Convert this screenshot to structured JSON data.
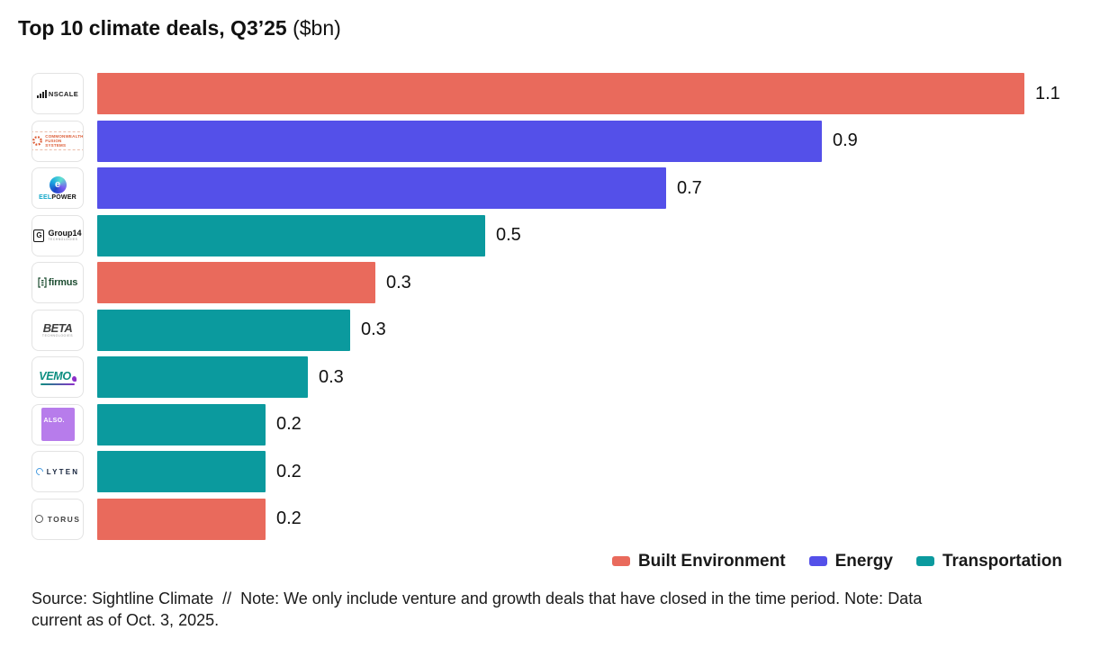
{
  "title": {
    "main": "Top 10 climate deals, Q3’25",
    "suffix": " ($bn)"
  },
  "sector_colors": {
    "Built Environment": "#e96a5c",
    "Energy": "#5450e9",
    "Transportation": "#0b9a9e"
  },
  "chart_data": {
    "type": "bar",
    "orientation": "horizontal",
    "title": "Top 10 climate deals, Q3’25 ($bn)",
    "unit": "$bn",
    "xlim": [
      0,
      1.2
    ],
    "grid": false,
    "legend_position": "bottom-right",
    "categories": [
      "Nscale",
      "Commonwealth Fusion Systems",
      "Eel Power",
      "Group14",
      "Firmus",
      "BETA Technologies",
      "VEMO",
      "ALSO.",
      "Lyten",
      "Torus"
    ],
    "bars": [
      {
        "company": "Nscale",
        "sector": "Built Environment",
        "value": 1.1,
        "label": "1.1"
      },
      {
        "company": "Commonwealth Fusion Systems",
        "sector": "Energy",
        "value": 0.86,
        "label": "0.9"
      },
      {
        "company": "Eel Power",
        "sector": "Energy",
        "value": 0.675,
        "label": "0.7"
      },
      {
        "company": "Group14",
        "sector": "Transportation",
        "value": 0.46,
        "label": "0.5"
      },
      {
        "company": "Firmus",
        "sector": "Built Environment",
        "value": 0.33,
        "label": "0.3"
      },
      {
        "company": "BETA Technologies",
        "sector": "Transportation",
        "value": 0.3,
        "label": "0.3"
      },
      {
        "company": "VEMO",
        "sector": "Transportation",
        "value": 0.25,
        "label": "0.3"
      },
      {
        "company": "ALSO.",
        "sector": "Transportation",
        "value": 0.2,
        "label": "0.2"
      },
      {
        "company": "Lyten",
        "sector": "Transportation",
        "value": 0.2,
        "label": "0.2"
      },
      {
        "company": "Torus",
        "sector": "Built Environment",
        "value": 0.2,
        "label": "0.2"
      }
    ],
    "legend": [
      {
        "label": "Built Environment",
        "color": "#e96a5c"
      },
      {
        "label": "Energy",
        "color": "#5450e9"
      },
      {
        "label": "Transportation",
        "color": "#0b9a9e"
      }
    ]
  },
  "logos": {
    "nscale": {
      "text": "NSCALE"
    },
    "cfs": {
      "line1": "COMMONWEALTH",
      "line2": "FUSION SYSTEMS"
    },
    "eelpower": {
      "e": "e",
      "brand_left": "EEL",
      "brand_right": "POWER"
    },
    "group14": {
      "g": "G",
      "name": "Group14",
      "sub": "TECHNOLOGIES"
    },
    "firmus": {
      "text": "firmus"
    },
    "beta": {
      "name": "BETA",
      "sub": "TECHNOLOGIES"
    },
    "vemo": {
      "text": "VEMO"
    },
    "also": {
      "text": "ALSO."
    },
    "lyten": {
      "text": "LYTEN"
    },
    "torus": {
      "text": "TORUS"
    }
  },
  "footer": {
    "lines": [
      "Source: Sightline Climate  //  Note: We only include venture and growth deals that have closed in the time period. Note: Data",
      "current as of Oct. 3, 2025."
    ]
  }
}
